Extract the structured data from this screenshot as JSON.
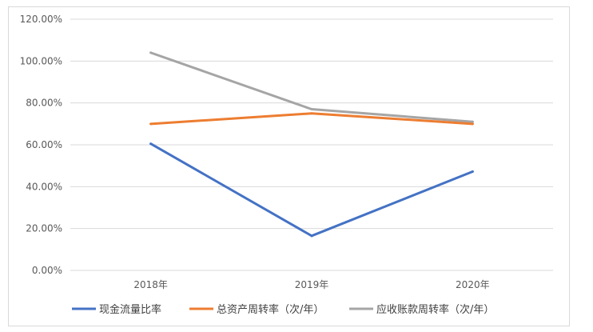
{
  "chart_data": {
    "type": "line",
    "title": "",
    "xlabel": "",
    "ylabel": "",
    "categories": [
      "2018年",
      "2019年",
      "2020年"
    ],
    "ylim": [
      0,
      120
    ],
    "yticks": [
      "0.00%",
      "20.00%",
      "40.00%",
      "60.00%",
      "80.00%",
      "100.00%",
      "120.00%"
    ],
    "ytick_values": [
      0,
      20,
      40,
      60,
      80,
      100,
      120
    ],
    "grid": true,
    "legend_position": "bottom",
    "series": [
      {
        "name": "现金流量比率",
        "color": "#4472c4",
        "values": [
          60.5,
          16.5,
          47.2
        ]
      },
      {
        "name": "总资产周转率（次/年）",
        "color": "#ed7d31",
        "values": [
          70.0,
          75.0,
          70.0
        ]
      },
      {
        "name": "应收账款周转率（次/年）",
        "color": "#a5a5a5",
        "values": [
          104.0,
          77.0,
          71.0
        ]
      }
    ]
  }
}
